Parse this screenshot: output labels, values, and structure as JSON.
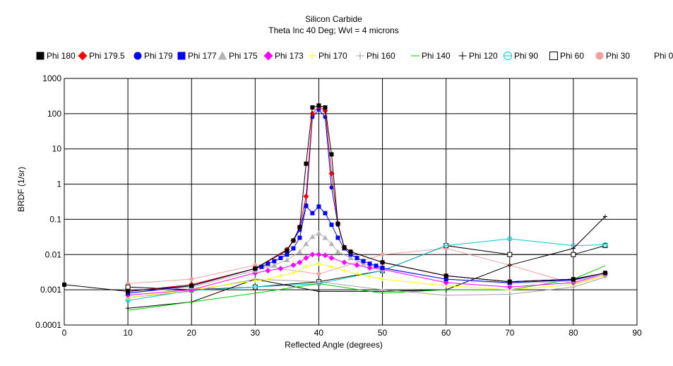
{
  "chart_data": {
    "type": "line",
    "title": "Silicon Carbide",
    "subtitle": "Theta Inc 40 Deg; Wvl = 4 microns",
    "xlabel": "Reflected Angle (degrees)",
    "ylabel": "BRDF (1/sr)",
    "xlim": [
      0,
      90
    ],
    "ylim": [
      0.0001,
      1000
    ],
    "yscale": "log",
    "grid": true,
    "legend_position": "top",
    "x_ticks": [
      "0",
      "10",
      "20",
      "30",
      "40",
      "50",
      "60",
      "70",
      "80",
      "90"
    ],
    "y_ticks": [
      "0.0001",
      "0.001",
      "0.01",
      "0.1",
      "1",
      "10",
      "100",
      "1000"
    ],
    "series": [
      {
        "name": "Phi 180",
        "color": "#000000",
        "marker": "square",
        "x": [
          0,
          10,
          20,
          30,
          35,
          36,
          37,
          38,
          39,
          40,
          41,
          42,
          43,
          44,
          45,
          50,
          60,
          70,
          80,
          85
        ],
        "y": [
          0.0014,
          0.0009,
          0.0013,
          0.004,
          0.013,
          0.025,
          0.06,
          3.8,
          150,
          170,
          150,
          7,
          0.075,
          0.016,
          0.012,
          0.006,
          0.0025,
          0.0017,
          0.002,
          0.003
        ]
      },
      {
        "name": "Phi 179.5",
        "color": "#ff0000",
        "marker": "diamond",
        "x": [
          10,
          20,
          30,
          35,
          36,
          37,
          38,
          39,
          40,
          41,
          42,
          43,
          44,
          45,
          50,
          60,
          70,
          80,
          85
        ],
        "y": [
          0.0009,
          0.0014,
          0.004,
          0.014,
          0.025,
          0.06,
          0.45,
          100,
          160,
          120,
          2,
          0.075,
          0.016,
          0.012,
          0.006,
          0.0025,
          0.0017,
          0.002,
          0.003
        ]
      },
      {
        "name": "Phi 179",
        "color": "#0000ff",
        "marker": "circle",
        "x": [
          10,
          20,
          30,
          35,
          36,
          37,
          38,
          39,
          40,
          41,
          42,
          43,
          44,
          45,
          50,
          60,
          70,
          80,
          85
        ],
        "y": [
          0.0009,
          0.0014,
          0.004,
          0.014,
          0.025,
          0.05,
          0.25,
          80,
          130,
          80,
          0.8,
          0.07,
          0.016,
          0.012,
          0.006,
          0.0025,
          0.0017,
          0.002,
          0.003
        ]
      },
      {
        "name": "Phi 177",
        "color": "#0000ff",
        "marker": "square",
        "x": [
          10,
          20,
          30,
          31,
          32,
          33,
          34,
          35,
          36,
          37,
          38,
          39,
          40,
          41,
          42,
          43,
          44,
          45,
          46,
          47,
          48,
          49,
          50,
          60,
          70,
          80,
          85
        ],
        "y": [
          0.0008,
          0.0013,
          0.004,
          0.0045,
          0.0055,
          0.0065,
          0.008,
          0.01,
          0.015,
          0.03,
          0.24,
          0.15,
          0.23,
          0.15,
          0.07,
          0.03,
          0.015,
          0.01,
          0.008,
          0.0065,
          0.0055,
          0.0048,
          0.0042,
          0.002,
          0.0016,
          0.0019,
          0.003
        ]
      },
      {
        "name": "Phi 175",
        "color": "#b4b4b4",
        "marker": "triangle",
        "x": [
          10,
          20,
          30,
          33,
          35,
          37,
          38,
          39,
          40,
          41,
          42,
          43,
          45,
          47,
          50,
          60,
          70,
          80,
          85
        ],
        "y": [
          0.0008,
          0.0012,
          0.0035,
          0.005,
          0.007,
          0.012,
          0.02,
          0.032,
          0.04,
          0.03,
          0.02,
          0.012,
          0.008,
          0.0055,
          0.004,
          0.002,
          0.0015,
          0.0018,
          0.0028
        ]
      },
      {
        "name": "Phi 173",
        "color": "#ff00ff",
        "marker": "diamond",
        "x": [
          10,
          20,
          30,
          32,
          34,
          36,
          37,
          38,
          39,
          40,
          41,
          42,
          44,
          46,
          48,
          50,
          60,
          70,
          80,
          85
        ],
        "y": [
          0.0007,
          0.001,
          0.003,
          0.0035,
          0.004,
          0.005,
          0.006,
          0.008,
          0.01,
          0.01,
          0.0095,
          0.008,
          0.006,
          0.005,
          0.0042,
          0.0038,
          0.0016,
          0.0012,
          0.0016,
          0.0028
        ]
      },
      {
        "name": "Phi 170",
        "color": "#ffff00",
        "marker": "plus",
        "x": [
          10,
          20,
          30,
          32,
          34,
          36,
          38,
          40,
          42,
          44,
          46,
          48,
          50,
          60,
          70,
          80,
          85
        ],
        "y": [
          0.0006,
          0.001,
          0.0018,
          0.002,
          0.0025,
          0.003,
          0.0045,
          0.0055,
          0.0045,
          0.0035,
          0.0028,
          0.0024,
          0.002,
          0.0013,
          0.001,
          0.0014,
          0.0025
        ]
      },
      {
        "name": "Phi 160",
        "color": "#a0a0a0",
        "marker": "plus",
        "x": [
          10,
          20,
          30,
          40,
          50,
          60,
          70,
          80,
          85
        ],
        "y": [
          0.0006,
          0.0009,
          0.002,
          0.0017,
          0.001,
          0.0007,
          0.00075,
          0.0012,
          0.0023
        ]
      },
      {
        "name": "Phi 140",
        "color": "#00c800",
        "marker": "none",
        "x": [
          10,
          20,
          30,
          40,
          50,
          60,
          70,
          80,
          85
        ],
        "y": [
          0.00026,
          0.00045,
          0.0008,
          0.0015,
          0.0008,
          0.001,
          0.001,
          0.002,
          0.0048
        ]
      },
      {
        "name": "Phi 120",
        "color": "#000000",
        "marker": "plus",
        "x": [
          10,
          20,
          30,
          40,
          50,
          60,
          70,
          80,
          85
        ],
        "y": [
          0.0003,
          0.00045,
          0.002,
          0.0009,
          0.0009,
          0.001,
          0.005,
          0.015,
          0.12
        ]
      },
      {
        "name": "Phi 90",
        "color": "#00c8c8",
        "marker": "circle-open",
        "x": [
          10,
          20,
          30,
          40,
          50,
          60,
          70,
          80,
          85
        ],
        "y": [
          0.0005,
          0.00095,
          0.0012,
          0.0015,
          0.0035,
          0.018,
          0.028,
          0.018,
          0.019
        ]
      },
      {
        "name": "Phi 60",
        "color": "#000000",
        "marker": "square-open",
        "x": [
          10,
          20,
          30,
          40,
          50,
          60,
          70,
          80,
          85
        ],
        "y": [
          0.0012,
          0.001,
          0.0012,
          0.0017,
          0.0035,
          0.018,
          0.01,
          0.01,
          0.018
        ]
      },
      {
        "name": "Phi 30",
        "color": "#f0a0a0",
        "marker": "circle",
        "x": [
          10,
          20,
          30,
          40,
          50,
          60,
          70,
          80,
          85
        ],
        "y": [
          0.0015,
          0.002,
          0.005,
          0.0028,
          0.01,
          0.015,
          0.005,
          0.0015,
          0.0025
        ]
      },
      {
        "name": "Phi 0",
        "color": "#ffffff",
        "marker": "none",
        "x": [],
        "y": []
      }
    ]
  }
}
